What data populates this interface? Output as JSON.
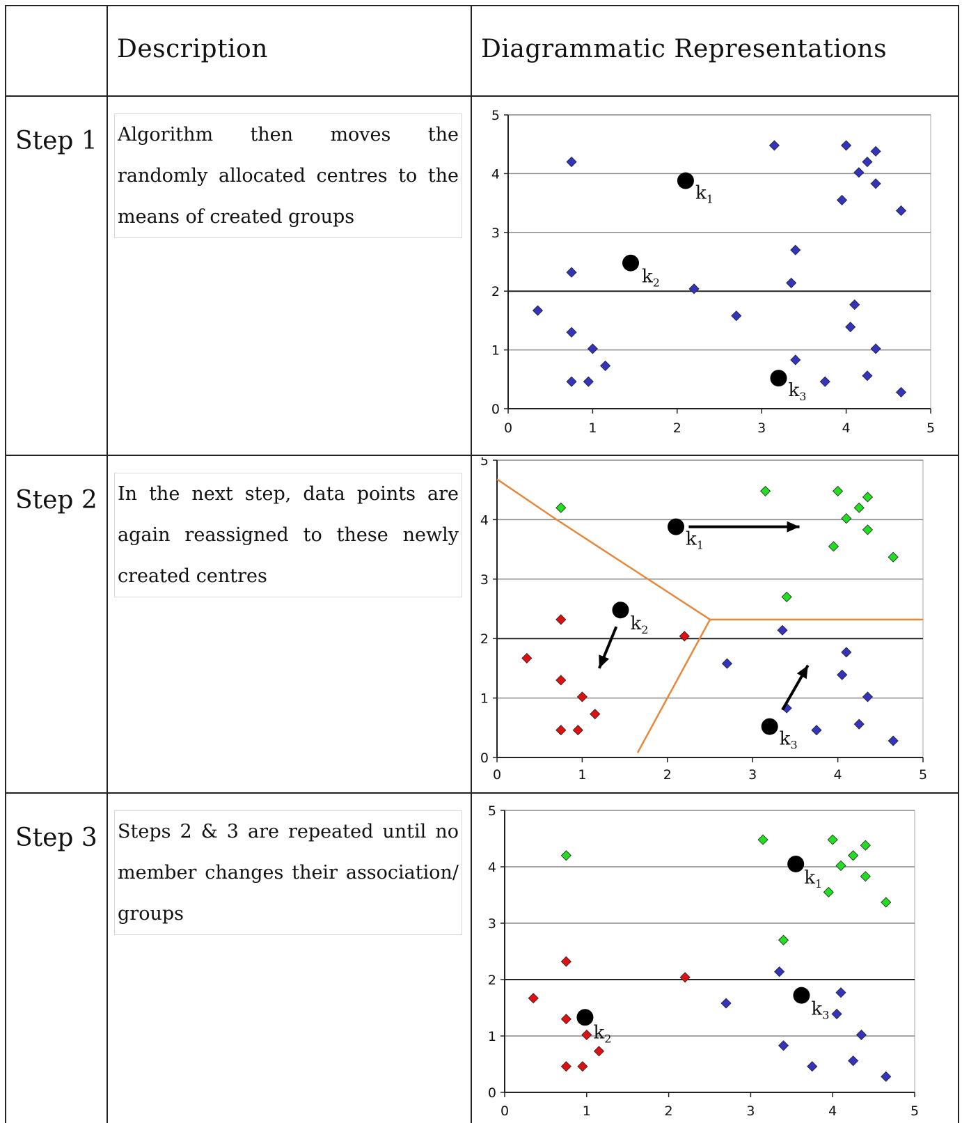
{
  "table": {
    "header": {
      "col1": "",
      "col2": "Description",
      "col3": "Diagrammatic Representations"
    },
    "rows": [
      {
        "step": "Step 1",
        "description": "Algorithm then moves the randomly allocated centres to the means of created groups"
      },
      {
        "step": "Step 2",
        "description": "In the next step, data points are again reassigned to these newly created centres"
      },
      {
        "step": "Step 3",
        "description": "Steps 2 & 3 are repeated until no member changes their association/ groups"
      }
    ]
  },
  "colors": {
    "blue": "#3333bb",
    "green": "#22dd22",
    "red": "#dd1111",
    "centroid": "#000000",
    "boundary": "#e8873a"
  },
  "chart_data": [
    {
      "type": "scatter",
      "title": "",
      "xlim": [
        0,
        5
      ],
      "ylim": [
        0,
        5
      ],
      "x_ticks": [
        "0",
        "1",
        "2",
        "3",
        "4",
        "5"
      ],
      "y_ticks": [
        "0",
        "1",
        "2",
        "3",
        "4",
        "5"
      ],
      "grid": "horizontal",
      "series": [
        {
          "color": "blue",
          "points": [
            [
              0.75,
              4.2
            ],
            [
              0.75,
              2.32
            ],
            [
              0.35,
              1.67
            ],
            [
              0.75,
              1.3
            ],
            [
              1.0,
              1.02
            ],
            [
              1.15,
              0.73
            ],
            [
              0.75,
              0.46
            ],
            [
              0.95,
              0.46
            ],
            [
              2.2,
              2.04
            ],
            [
              2.7,
              1.58
            ],
            [
              3.15,
              4.48
            ],
            [
              3.4,
              2.7
            ],
            [
              3.35,
              2.14
            ],
            [
              3.4,
              0.83
            ],
            [
              3.75,
              0.46
            ],
            [
              4.0,
              4.48
            ],
            [
              4.15,
              4.02
            ],
            [
              4.25,
              4.2
            ],
            [
              4.35,
              4.38
            ],
            [
              4.35,
              3.83
            ],
            [
              3.95,
              3.55
            ],
            [
              4.65,
              3.37
            ],
            [
              4.1,
              1.77
            ],
            [
              4.05,
              1.39
            ],
            [
              4.35,
              1.02
            ],
            [
              4.25,
              0.56
            ],
            [
              4.65,
              0.28
            ]
          ]
        },
        {
          "color": "centroid",
          "points": [
            [
              2.1,
              3.88
            ],
            [
              1.45,
              2.48
            ],
            [
              3.2,
              0.52
            ]
          ]
        }
      ],
      "centroid_labels": [
        {
          "text": "k",
          "sub": "1"
        },
        {
          "text": "k",
          "sub": "2"
        },
        {
          "text": "k",
          "sub": "3"
        }
      ]
    },
    {
      "type": "scatter",
      "title": "",
      "xlim": [
        0,
        5
      ],
      "ylim": [
        0,
        5
      ],
      "x_ticks": [
        "0",
        "1",
        "2",
        "3",
        "4",
        "5"
      ],
      "y_ticks": [
        "0",
        "1",
        "2",
        "3",
        "4",
        "5"
      ],
      "grid": "horizontal",
      "series": [
        {
          "color": "green",
          "points": [
            [
              0.75,
              4.2
            ],
            [
              3.15,
              4.48
            ],
            [
              4.0,
              4.48
            ],
            [
              4.25,
              4.2
            ],
            [
              4.35,
              4.38
            ],
            [
              4.1,
              4.02
            ],
            [
              4.35,
              3.83
            ],
            [
              3.95,
              3.55
            ],
            [
              4.65,
              3.37
            ],
            [
              3.4,
              2.7
            ]
          ]
        },
        {
          "color": "red",
          "points": [
            [
              0.75,
              2.32
            ],
            [
              0.35,
              1.67
            ],
            [
              0.75,
              1.3
            ],
            [
              1.0,
              1.02
            ],
            [
              1.15,
              0.73
            ],
            [
              0.75,
              0.46
            ],
            [
              0.95,
              0.46
            ],
            [
              2.2,
              2.04
            ]
          ]
        },
        {
          "color": "blue",
          "points": [
            [
              3.35,
              2.14
            ],
            [
              2.7,
              1.58
            ],
            [
              4.1,
              1.77
            ],
            [
              4.05,
              1.39
            ],
            [
              4.35,
              1.02
            ],
            [
              3.4,
              0.83
            ],
            [
              3.75,
              0.46
            ],
            [
              4.25,
              0.56
            ],
            [
              4.65,
              0.28
            ]
          ]
        },
        {
          "color": "centroid",
          "points": [
            [
              2.1,
              3.88
            ],
            [
              1.45,
              2.48
            ],
            [
              3.2,
              0.52
            ]
          ]
        }
      ],
      "centroid_labels": [
        {
          "text": "k",
          "sub": "1"
        },
        {
          "text": "k",
          "sub": "2"
        },
        {
          "text": "k",
          "sub": "3"
        }
      ],
      "arrows": [
        {
          "from": [
            2.25,
            3.88
          ],
          "to": [
            3.55,
            3.88
          ]
        },
        {
          "from": [
            1.4,
            2.2
          ],
          "to": [
            1.2,
            1.5
          ]
        },
        {
          "from": [
            3.35,
            0.8
          ],
          "to": [
            3.65,
            1.55
          ]
        }
      ],
      "boundaries": [
        [
          [
            0.0,
            4.68
          ],
          [
            0.7,
            4.0
          ],
          [
            2.5,
            2.32
          ]
        ],
        [
          [
            2.5,
            2.32
          ],
          [
            5.0,
            2.32
          ]
        ],
        [
          [
            2.5,
            2.32
          ],
          [
            1.65,
            0.08
          ]
        ]
      ]
    },
    {
      "type": "scatter",
      "title": "",
      "xlim": [
        0,
        5
      ],
      "ylim": [
        0,
        5
      ],
      "x_ticks": [
        "0",
        "1",
        "2",
        "3",
        "4",
        "5"
      ],
      "y_ticks": [
        "0",
        "1",
        "2",
        "3",
        "4",
        "5"
      ],
      "grid": "horizontal",
      "series": [
        {
          "color": "green",
          "points": [
            [
              0.75,
              4.2
            ],
            [
              3.15,
              4.48
            ],
            [
              4.0,
              4.48
            ],
            [
              4.25,
              4.2
            ],
            [
              4.4,
              4.38
            ],
            [
              4.1,
              4.02
            ],
            [
              4.4,
              3.83
            ],
            [
              3.95,
              3.55
            ],
            [
              4.65,
              3.37
            ],
            [
              3.4,
              2.7
            ]
          ]
        },
        {
          "color": "red",
          "points": [
            [
              0.75,
              2.32
            ],
            [
              0.35,
              1.67
            ],
            [
              0.75,
              1.3
            ],
            [
              1.0,
              1.02
            ],
            [
              1.15,
              0.73
            ],
            [
              0.75,
              0.46
            ],
            [
              0.95,
              0.46
            ],
            [
              2.2,
              2.04
            ]
          ]
        },
        {
          "color": "blue",
          "points": [
            [
              3.35,
              2.14
            ],
            [
              2.7,
              1.58
            ],
            [
              4.1,
              1.77
            ],
            [
              4.05,
              1.39
            ],
            [
              4.35,
              1.02
            ],
            [
              3.4,
              0.83
            ],
            [
              3.75,
              0.46
            ],
            [
              4.25,
              0.56
            ],
            [
              4.65,
              0.28
            ]
          ]
        },
        {
          "color": "centroid",
          "points": [
            [
              3.55,
              4.05
            ],
            [
              0.98,
              1.33
            ],
            [
              3.62,
              1.72
            ]
          ]
        }
      ],
      "centroid_labels": [
        {
          "text": "k",
          "sub": "1"
        },
        {
          "text": "k",
          "sub": "2"
        },
        {
          "text": "k",
          "sub": "3"
        }
      ]
    }
  ]
}
